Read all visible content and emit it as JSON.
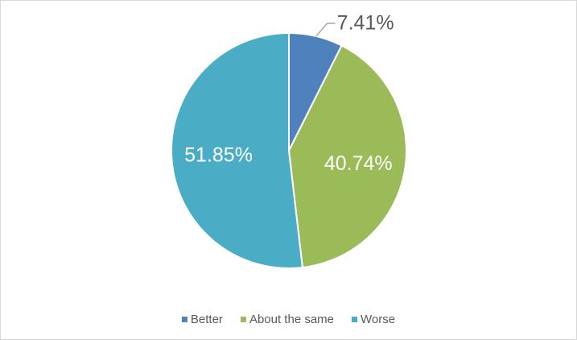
{
  "chart_data": {
    "type": "pie",
    "categories": [
      "Better",
      "About the same",
      "Worse"
    ],
    "values": [
      7.41,
      40.74,
      51.85
    ],
    "value_labels": [
      "7.41%",
      "40.74%",
      "51.85%"
    ],
    "colors": [
      "#4f81bd",
      "#9bbb59",
      "#4bacc6"
    ],
    "legend": "bottom"
  }
}
